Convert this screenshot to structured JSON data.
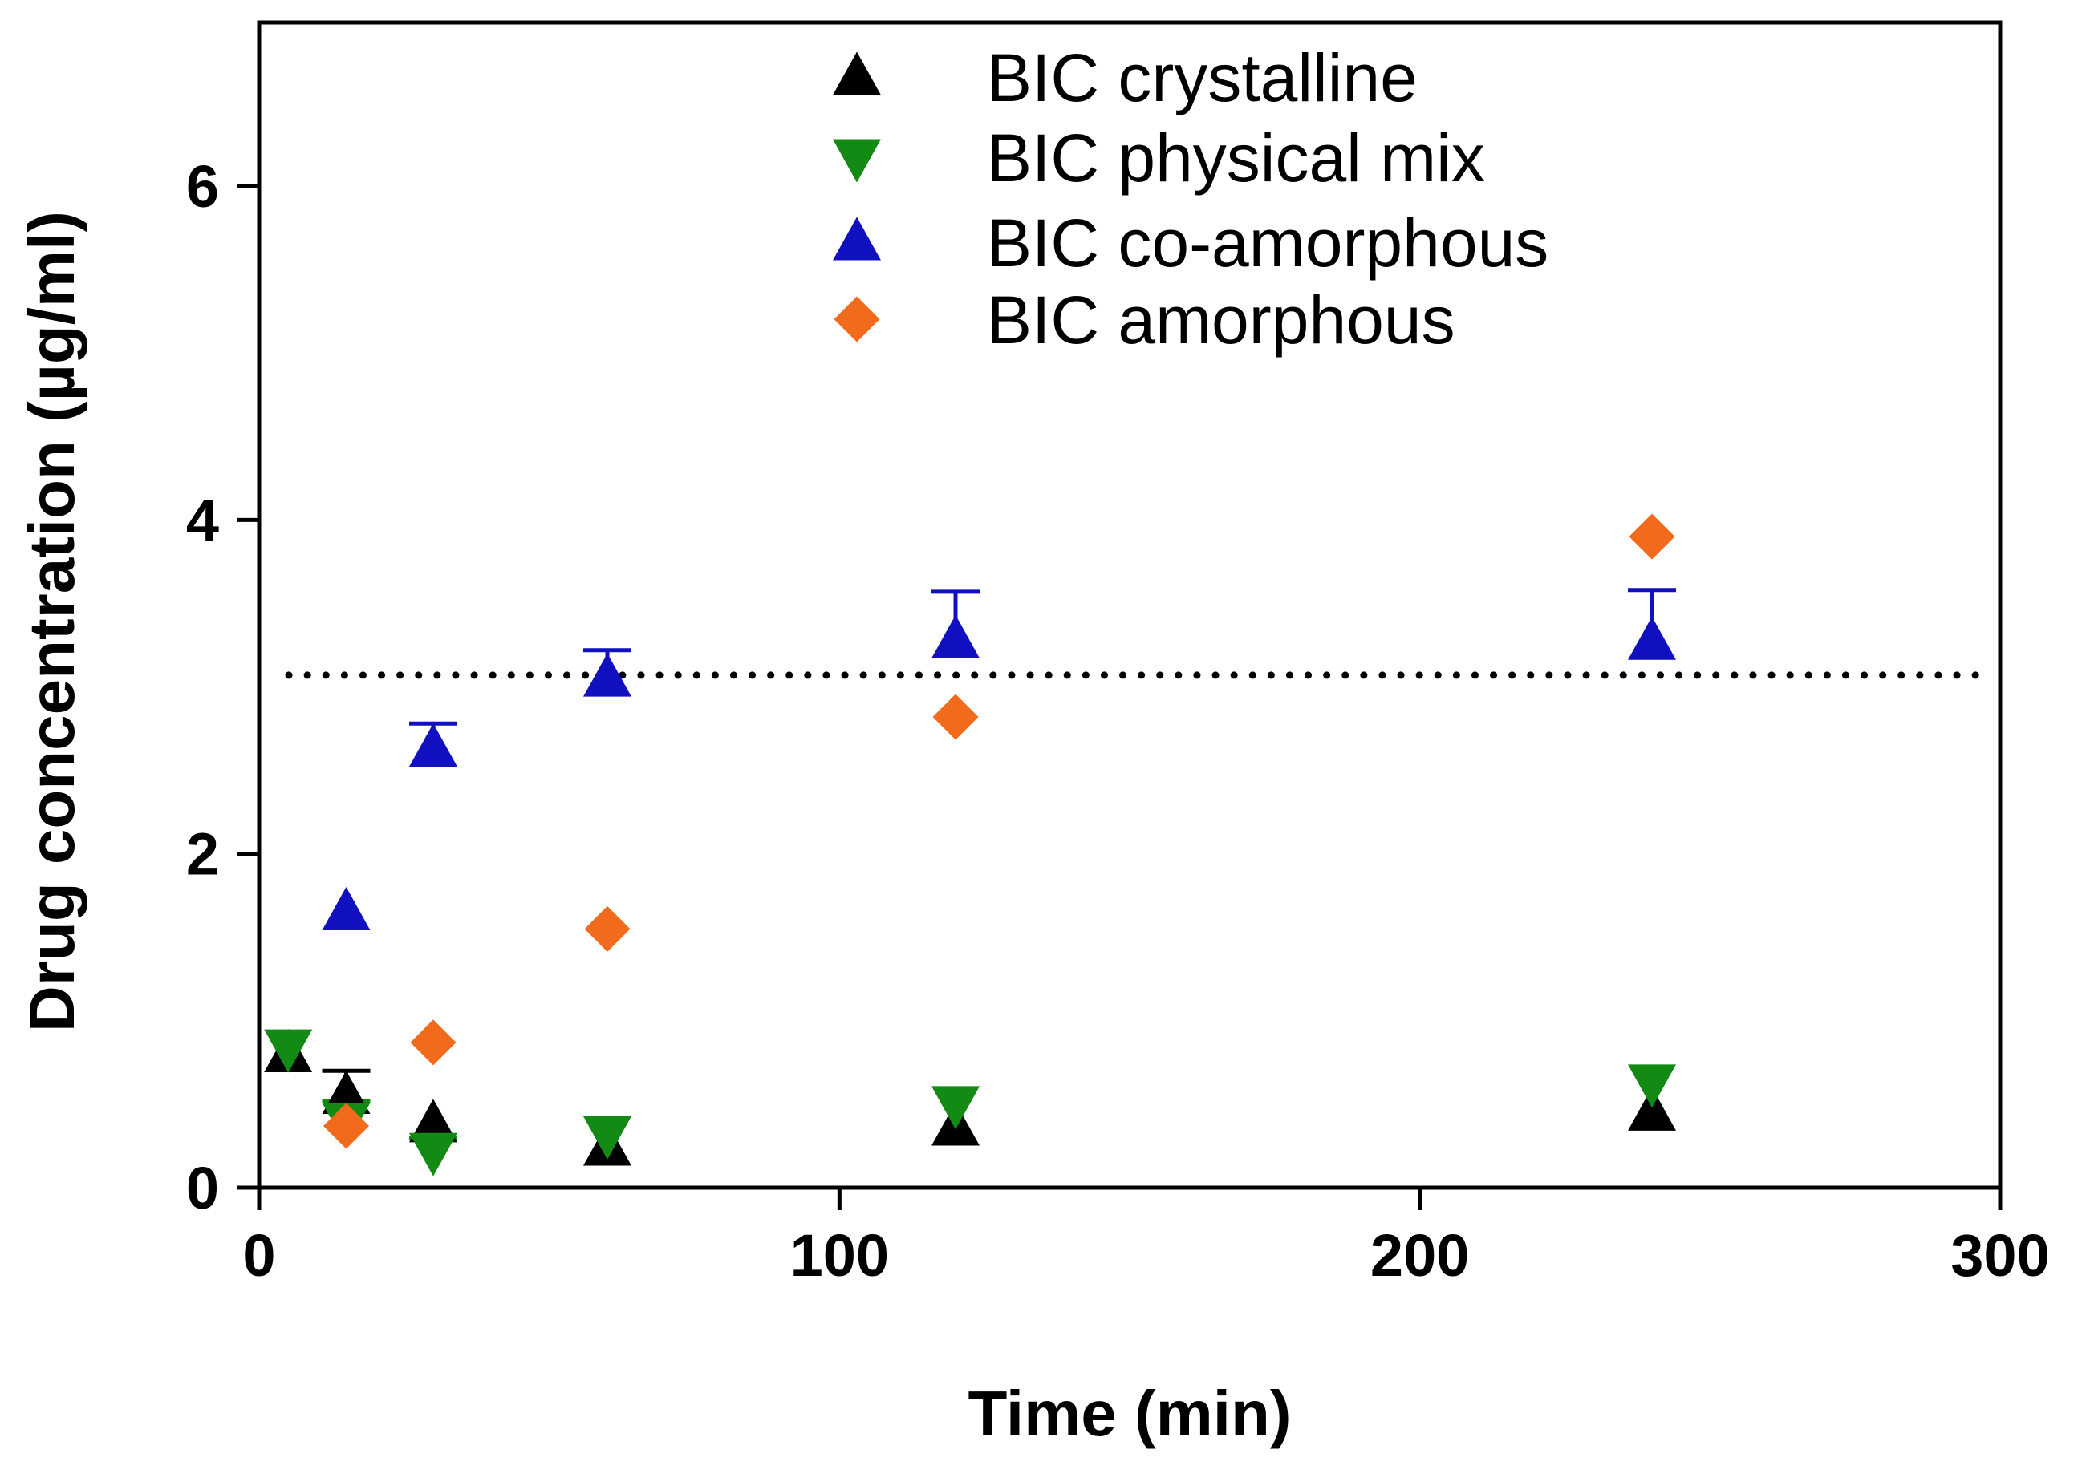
{
  "chart_data": {
    "type": "scatter",
    "title": "",
    "xlabel": "Time (min)",
    "ylabel": "Drug concentration (µg/ml)",
    "xlim": [
      0,
      300
    ],
    "ylim": [
      0,
      7
    ],
    "xticks": [
      0,
      100,
      200,
      300
    ],
    "yticks": [
      0,
      2,
      4,
      6
    ],
    "xtick_labels": [
      "0",
      "100",
      "200",
      "300"
    ],
    "ytick_labels": [
      "0",
      "2",
      "4",
      "6"
    ],
    "grid": false,
    "legend_position": "top-center",
    "reference_line": {
      "y": 3.07,
      "style": "dotted",
      "color": "#000000"
    },
    "series": [
      {
        "name": "BIC crystalline",
        "marker": "triangle-up",
        "color": "#000000",
        "x": [
          5,
          15,
          30,
          60,
          120,
          240
        ],
        "y": [
          0.8,
          0.55,
          0.38,
          0.24,
          0.36,
          0.45
        ],
        "err_upper": [
          null,
          0.7,
          null,
          null,
          null,
          null
        ]
      },
      {
        "name": "BIC physical mix",
        "marker": "triangle-down",
        "color": "#138a13",
        "x": [
          5,
          15,
          30,
          60,
          120,
          240
        ],
        "y": [
          0.84,
          0.4,
          0.22,
          0.32,
          0.5,
          0.63
        ],
        "err_upper": [
          null,
          0.52,
          0.3,
          null,
          null,
          null
        ]
      },
      {
        "name": "BIC co-amorphous",
        "marker": "triangle-up",
        "color": "#1010c0",
        "x": [
          15,
          30,
          60,
          120,
          240
        ],
        "y": [
          1.65,
          2.63,
          3.05,
          3.28,
          3.27
        ],
        "err_upper": [
          null,
          2.78,
          3.22,
          3.57,
          3.58
        ]
      },
      {
        "name": "BIC amorphous",
        "marker": "diamond",
        "color": "#f26b1d",
        "x": [
          15,
          30,
          60,
          120,
          240
        ],
        "y": [
          0.37,
          0.87,
          1.55,
          2.82,
          3.9
        ],
        "err_upper": [
          null,
          null,
          null,
          null,
          null
        ]
      }
    ]
  }
}
